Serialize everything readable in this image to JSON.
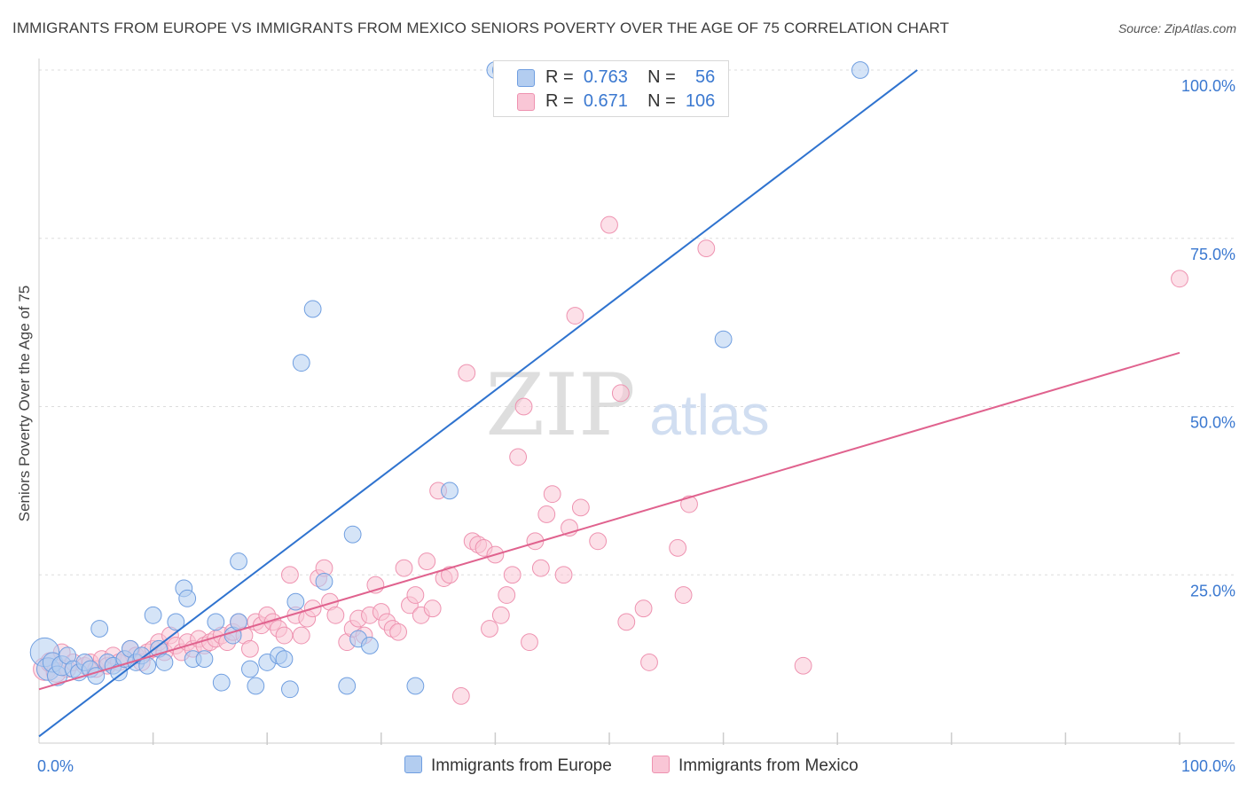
{
  "title": "IMMIGRANTS FROM EUROPE VS IMMIGRANTS FROM MEXICO SENIORS POVERTY OVER THE AGE OF 75 CORRELATION CHART",
  "source": "Source: ZipAtlas.com",
  "watermark": {
    "zip": "ZIP",
    "atlas": "atlas"
  },
  "legend": {
    "europe": {
      "r_label": "R =",
      "r_value": "0.763",
      "n_label": "N =",
      "n_value": "56"
    },
    "mexico": {
      "r_label": "R =",
      "r_value": "0.671",
      "n_label": "N =",
      "n_value": "106"
    }
  },
  "colors": {
    "europe_fill": "#b3cdf0",
    "europe_stroke": "#6f9ee0",
    "europe_line": "#2f73cf",
    "mexico_fill": "#f9c6d6",
    "mexico_stroke": "#ee92b0",
    "mexico_line": "#e0628e",
    "tick_label": "#3a78d0",
    "grid": "#dddddd"
  },
  "chart_data": {
    "type": "scatter",
    "title": "IMMIGRANTS FROM EUROPE VS IMMIGRANTS FROM MEXICO SENIORS POVERTY OVER THE AGE OF 75 CORRELATION CHART",
    "xlabel": "",
    "ylabel": "Seniors Poverty Over the Age of 75",
    "xlim": [
      0,
      100
    ],
    "ylim": [
      0,
      100
    ],
    "x_tick_labels": [
      "0.0%",
      "100.0%"
    ],
    "y_ticks": [
      25,
      50,
      75,
      100
    ],
    "y_tick_labels": [
      "25.0%",
      "50.0%",
      "75.0%",
      "100.0%"
    ],
    "grid": true,
    "series": [
      {
        "name": "Immigrants from Europe",
        "r": 0.763,
        "n": 56,
        "trend": {
          "x0": 0,
          "y0": 1,
          "x1": 77,
          "y1": 100
        },
        "points": [
          [
            0.5,
            13.5,
            6
          ],
          [
            0.8,
            11,
            4
          ],
          [
            1.2,
            12,
            3
          ],
          [
            1.6,
            10,
            3
          ],
          [
            2,
            11.5,
            3
          ],
          [
            2.5,
            13,
            2
          ],
          [
            3,
            11,
            2
          ],
          [
            3.5,
            10.5,
            2
          ],
          [
            4,
            12,
            2
          ],
          [
            4.5,
            11,
            2
          ],
          [
            5,
            10,
            2
          ],
          [
            5.3,
            17,
            2
          ],
          [
            6,
            12,
            2
          ],
          [
            6.5,
            11.5,
            2
          ],
          [
            7,
            10.5,
            2
          ],
          [
            7.5,
            12.5,
            2
          ],
          [
            8,
            14,
            2
          ],
          [
            8.5,
            12,
            2
          ],
          [
            9,
            13,
            2
          ],
          [
            9.5,
            11.5,
            2
          ],
          [
            10,
            19,
            2
          ],
          [
            10.5,
            14,
            2
          ],
          [
            11,
            12,
            2
          ],
          [
            12,
            18,
            2
          ],
          [
            12.7,
            23,
            2
          ],
          [
            13,
            21.5,
            2
          ],
          [
            13.5,
            12.5,
            2
          ],
          [
            14.5,
            12.5,
            2
          ],
          [
            15.5,
            18,
            2
          ],
          [
            16,
            9,
            2
          ],
          [
            17,
            16,
            2
          ],
          [
            17.5,
            18,
            2
          ],
          [
            17.5,
            27,
            2
          ],
          [
            18.5,
            11,
            2
          ],
          [
            19,
            8.5,
            2
          ],
          [
            20,
            12,
            2
          ],
          [
            21,
            13,
            2
          ],
          [
            21.5,
            12.5,
            2
          ],
          [
            22,
            8,
            2
          ],
          [
            22.5,
            21,
            2
          ],
          [
            23,
            56.5,
            2
          ],
          [
            24,
            64.5,
            2
          ],
          [
            25,
            24,
            2
          ],
          [
            27,
            8.5,
            2
          ],
          [
            27.5,
            31,
            2
          ],
          [
            28,
            15.5,
            2
          ],
          [
            29,
            14.5,
            2
          ],
          [
            33,
            8.5,
            2
          ],
          [
            36,
            37.5,
            2
          ],
          [
            40,
            100,
            2
          ],
          [
            40.5,
            100,
            2
          ],
          [
            60,
            60,
            2
          ],
          [
            72,
            100,
            2
          ]
        ]
      },
      {
        "name": "Immigrants from Mexico",
        "r": 0.671,
        "n": 106,
        "trend": {
          "x0": 0,
          "y0": 8,
          "x1": 100,
          "y1": 58
        },
        "points": [
          [
            0.5,
            11,
            4
          ],
          [
            1,
            12,
            3
          ],
          [
            1.5,
            10.5,
            3
          ],
          [
            2,
            13.5,
            2
          ],
          [
            2.5,
            11,
            2
          ],
          [
            3,
            12,
            2
          ],
          [
            4,
            11.5,
            2
          ],
          [
            4.5,
            12,
            2
          ],
          [
            5,
            11,
            2
          ],
          [
            5.5,
            12.5,
            2
          ],
          [
            6,
            11.5,
            2
          ],
          [
            6.5,
            13,
            2
          ],
          [
            7,
            12,
            2
          ],
          [
            7.5,
            12.5,
            2
          ],
          [
            8,
            14,
            2
          ],
          [
            8.5,
            13,
            2
          ],
          [
            9,
            12,
            2
          ],
          [
            9.5,
            13.5,
            2
          ],
          [
            10,
            14,
            2
          ],
          [
            10.5,
            15,
            2
          ],
          [
            11,
            13.5,
            2
          ],
          [
            11.5,
            16,
            2
          ],
          [
            12,
            14.5,
            2
          ],
          [
            12.5,
            13.5,
            2
          ],
          [
            13,
            15,
            2
          ],
          [
            13.5,
            14,
            2
          ],
          [
            14,
            15.5,
            2
          ],
          [
            14.5,
            14.5,
            2
          ],
          [
            15,
            15,
            2
          ],
          [
            15.5,
            15.5,
            2
          ],
          [
            16,
            16,
            2
          ],
          [
            16.5,
            15,
            2
          ],
          [
            17,
            16.5,
            2
          ],
          [
            17.5,
            18,
            2
          ],
          [
            18,
            16,
            2
          ],
          [
            18.5,
            14,
            2
          ],
          [
            19,
            18,
            2
          ],
          [
            19.5,
            17.5,
            2
          ],
          [
            20,
            19,
            2
          ],
          [
            20.5,
            18,
            2
          ],
          [
            21,
            17,
            2
          ],
          [
            21.5,
            16,
            2
          ],
          [
            22,
            25,
            2
          ],
          [
            22.5,
            19,
            2
          ],
          [
            23,
            16,
            2
          ],
          [
            23.5,
            18.5,
            2
          ],
          [
            24,
            20,
            2
          ],
          [
            24.5,
            24.5,
            2
          ],
          [
            25,
            26,
            2
          ],
          [
            25.5,
            21,
            2
          ],
          [
            26,
            19,
            2
          ],
          [
            27,
            15,
            2
          ],
          [
            27.5,
            17,
            2
          ],
          [
            28,
            18.5,
            2
          ],
          [
            28.5,
            16,
            2
          ],
          [
            29,
            19,
            2
          ],
          [
            29.5,
            23.5,
            2
          ],
          [
            30,
            19.5,
            2
          ],
          [
            30.5,
            18,
            2
          ],
          [
            31,
            17,
            2
          ],
          [
            31.5,
            16.5,
            2
          ],
          [
            32,
            26,
            2
          ],
          [
            32.5,
            20.5,
            2
          ],
          [
            33,
            22,
            2
          ],
          [
            33.5,
            19,
            2
          ],
          [
            34,
            27,
            2
          ],
          [
            34.5,
            20,
            2
          ],
          [
            35,
            37.5,
            2
          ],
          [
            35.5,
            24.5,
            2
          ],
          [
            36,
            25,
            2
          ],
          [
            37,
            7,
            2
          ],
          [
            37.5,
            55,
            2
          ],
          [
            38,
            30,
            2
          ],
          [
            38.5,
            29.5,
            2
          ],
          [
            39,
            29,
            2
          ],
          [
            39.5,
            17,
            2
          ],
          [
            40,
            28,
            2
          ],
          [
            40.5,
            19,
            2
          ],
          [
            41,
            22,
            2
          ],
          [
            41.5,
            25,
            2
          ],
          [
            42,
            42.5,
            2
          ],
          [
            42.5,
            50,
            2
          ],
          [
            43,
            15,
            2
          ],
          [
            43.5,
            30,
            2
          ],
          [
            44,
            26,
            2
          ],
          [
            44.5,
            34,
            2
          ],
          [
            45,
            37,
            2
          ],
          [
            46,
            25,
            2
          ],
          [
            46.5,
            32,
            2
          ],
          [
            47,
            63.5,
            2
          ],
          [
            47.5,
            35,
            2
          ],
          [
            49,
            30,
            2
          ],
          [
            50,
            77,
            2
          ],
          [
            51,
            52,
            2
          ],
          [
            51.5,
            18,
            2
          ],
          [
            53,
            20,
            2
          ],
          [
            53.5,
            12,
            2
          ],
          [
            56,
            29,
            2
          ],
          [
            56.5,
            22,
            2
          ],
          [
            57,
            35.5,
            2
          ],
          [
            58.5,
            73.5,
            2
          ],
          [
            67,
            11.5,
            2
          ],
          [
            100,
            69,
            2
          ]
        ]
      }
    ]
  }
}
